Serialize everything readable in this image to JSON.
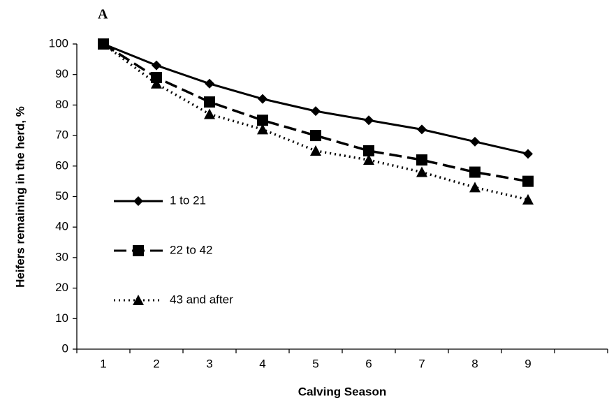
{
  "chart_data": {
    "type": "line",
    "panel_label": "A",
    "categories": [
      "1",
      "2",
      "3",
      "4",
      "5",
      "6",
      "7",
      "8",
      "9",
      null
    ],
    "x_label": "Calving Season",
    "y_label": "Heifers remaining in the herd, %",
    "ylim": [
      0,
      100
    ],
    "yticks": [
      0,
      10,
      20,
      30,
      40,
      50,
      60,
      70,
      80,
      90,
      100
    ],
    "grid": false,
    "legend": "left",
    "series": [
      {
        "name": "1 to 21",
        "color": "#000000",
        "line_style": "solid",
        "marker": "diamond",
        "values": [
          100,
          93,
          87,
          82,
          78,
          75,
          72,
          68,
          64,
          null
        ]
      },
      {
        "name": "22 to 42",
        "color": "#000000",
        "line_style": "dashed",
        "marker": "square",
        "values": [
          100,
          89,
          81,
          75,
          70,
          65,
          62,
          58,
          55,
          null
        ]
      },
      {
        "name": "43 and after",
        "color": "#000000",
        "line_style": "dotted",
        "marker": "triangle",
        "values": [
          100,
          87,
          77,
          72,
          65,
          62,
          58,
          53,
          49,
          null
        ]
      }
    ]
  }
}
